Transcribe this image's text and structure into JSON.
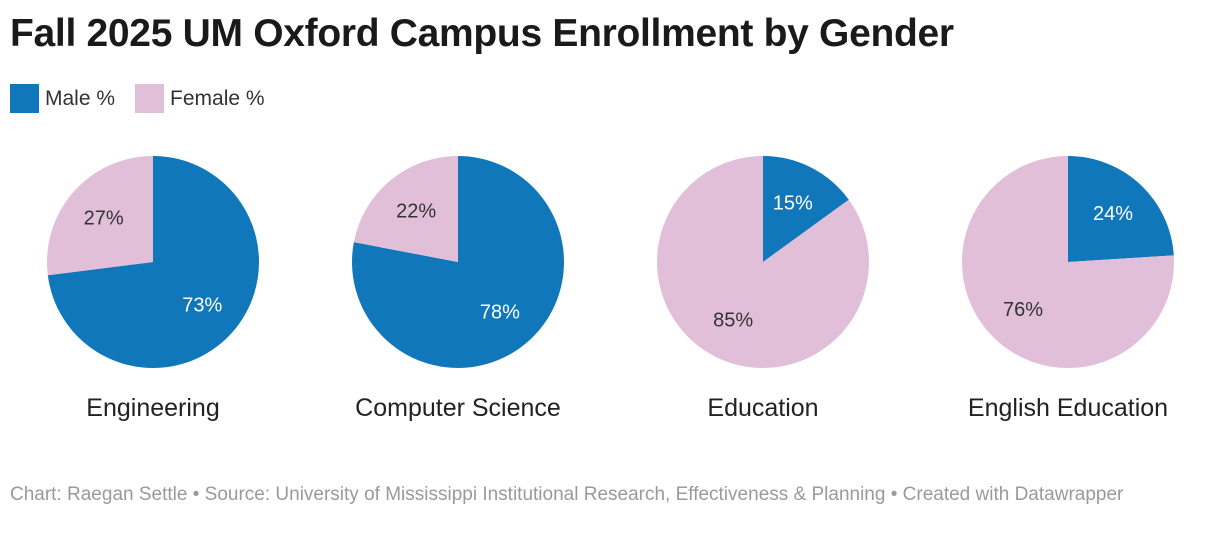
{
  "title": "Fall 2025 UM Oxford Campus Enrollment by Gender",
  "legend": [
    {
      "label": "Male %",
      "color": "#1177bb"
    },
    {
      "label": "Female %",
      "color": "#e2bfd9"
    }
  ],
  "footer": "Chart: Raegan Settle • Source: University of Mississippi Institutional Research, Effectiveness & Planning • Created with Datawrapper",
  "chart_data": {
    "type": "pie",
    "slice_names": [
      "Male %",
      "Female %"
    ],
    "colors": [
      "#1177bb",
      "#e2bfd9"
    ],
    "pies": [
      {
        "label": "Engineering",
        "values": [
          73,
          27
        ],
        "value_labels": [
          "73%",
          "27%"
        ]
      },
      {
        "label": "Computer Science",
        "values": [
          78,
          22
        ],
        "value_labels": [
          "78%",
          "22%"
        ]
      },
      {
        "label": "Education",
        "values": [
          15,
          85
        ],
        "value_labels": [
          "15%",
          "85%"
        ]
      },
      {
        "label": "English Education",
        "values": [
          24,
          76
        ],
        "value_labels": [
          "24%",
          "76%"
        ]
      }
    ]
  }
}
